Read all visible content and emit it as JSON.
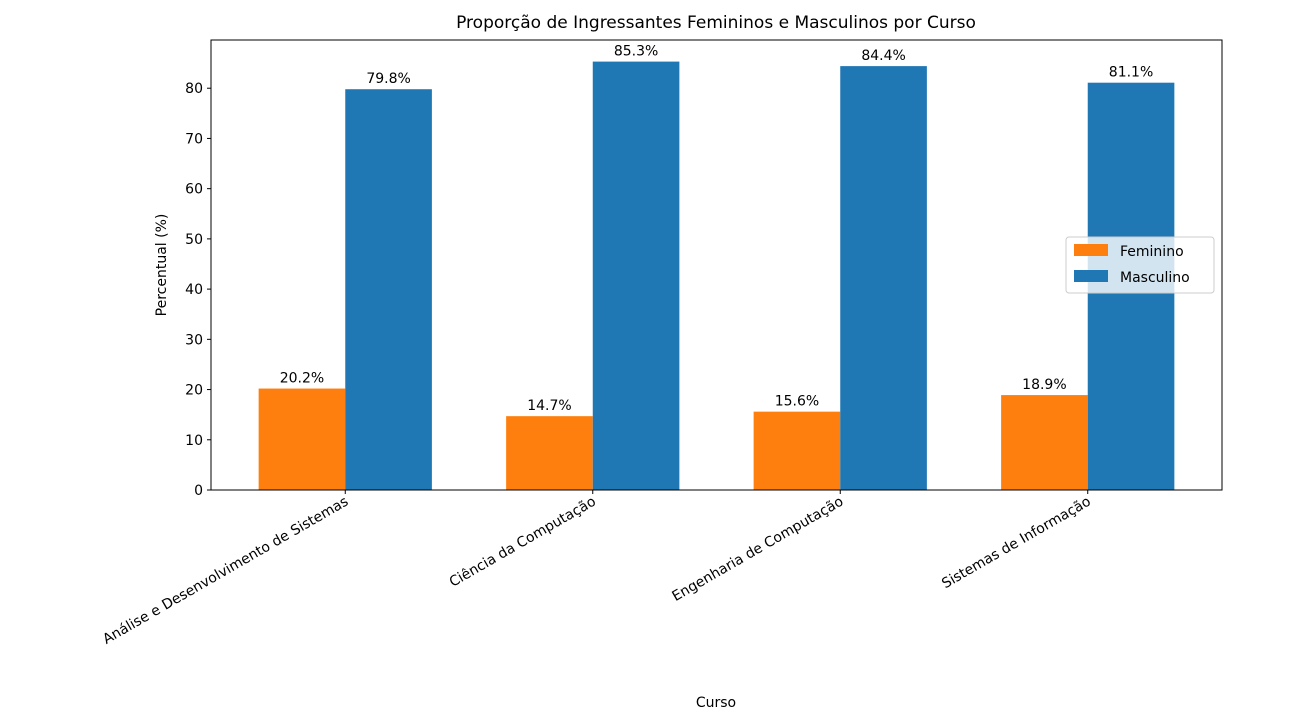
{
  "chart_data": {
    "type": "bar",
    "title": "Proporção de Ingressantes Femininos e Masculinos por Curso",
    "xlabel": "Curso",
    "ylabel": "Percentual (%)",
    "categories": [
      "Análise e Desenvolvimento de Sistemas",
      "Ciência da Computação",
      "Engenharia de Computação",
      "Sistemas de Informação"
    ],
    "series": [
      {
        "name": "Feminino",
        "color": "#ff7f0e",
        "values": [
          20.2,
          14.7,
          15.6,
          18.9
        ],
        "labels": [
          "20.2%",
          "14.7%",
          "15.6%",
          "18.9%"
        ]
      },
      {
        "name": "Masculino",
        "color": "#1f77b4",
        "values": [
          79.8,
          85.3,
          84.4,
          81.1
        ],
        "labels": [
          "79.8%",
          "85.3%",
          "84.4%",
          "81.1%"
        ]
      }
    ],
    "yticks": [
      "0",
      "10",
      "20",
      "30",
      "40",
      "50",
      "60",
      "70",
      "80"
    ],
    "ylim": [
      0,
      89.6
    ],
    "grid": false,
    "legend_position": "center-right"
  }
}
